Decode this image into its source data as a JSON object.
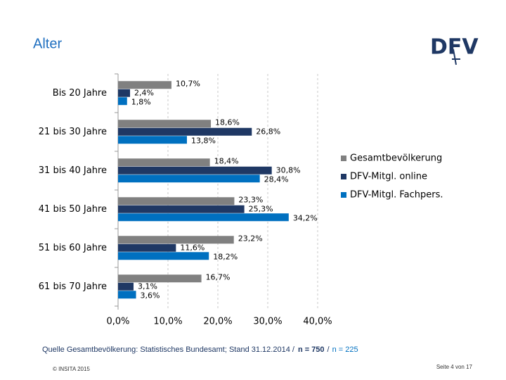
{
  "slide": {
    "title": "Alter",
    "logo": "DFV",
    "source": {
      "text": "Quelle Gesamtbevölkerung: Statistisches Bundesamt; Stand 31.12.2014 /",
      "n_online": "n = 750",
      "separator": "/",
      "n_fach": "n = 225"
    },
    "copyright": "© INSITA 2015",
    "page_number": "Seite 4 von 17"
  },
  "chart_data": {
    "type": "hbar",
    "categories": [
      "Bis 20 Jahre",
      "21 bis 30 Jahre",
      "31 bis 40 Jahre",
      "41 bis 50 Jahre",
      "51 bis 60 Jahre",
      "61 bis 70 Jahre"
    ],
    "series": [
      {
        "name": "Gesamtbevölkerung",
        "color": "#808080",
        "values": [
          10.7,
          18.6,
          18.4,
          23.3,
          23.2,
          16.7
        ],
        "value_labels": [
          "10,7%",
          "18,6%",
          "18,4%",
          "23,3%",
          "23,2%",
          "16,7%"
        ]
      },
      {
        "name": "DFV-Mitgl. online",
        "color": "#1f3864",
        "values": [
          2.4,
          26.8,
          30.8,
          25.3,
          11.6,
          3.1
        ],
        "value_labels": [
          "2,4%",
          "26,8%",
          "30,8%",
          "25,3%",
          "11,6%",
          "3,1%"
        ]
      },
      {
        "name": "DFV-Mitgl. Fachpers.",
        "color": "#0070c0",
        "values": [
          1.8,
          13.8,
          28.4,
          34.2,
          18.2,
          3.6
        ],
        "value_labels": [
          "1,8%",
          "13,8%",
          "28,4%",
          "34,2%",
          "18,2%",
          "3,6%"
        ]
      }
    ],
    "xlim": [
      0,
      40
    ],
    "xticks": [
      {
        "value": 0,
        "label": "0,0%"
      },
      {
        "value": 10,
        "label": "10,0%"
      },
      {
        "value": 20,
        "label": "20,0%"
      },
      {
        "value": 30,
        "label": "30,0%"
      },
      {
        "value": 40,
        "label": "40,0%"
      }
    ],
    "grid": true,
    "legend": "right"
  }
}
